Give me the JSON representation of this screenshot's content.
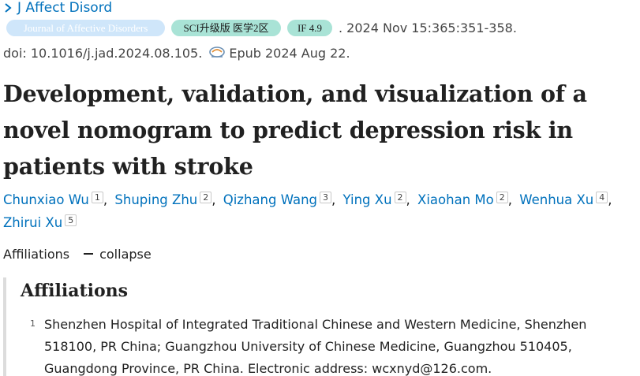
{
  "journal": {
    "name": "J Affect Disord"
  },
  "badges": {
    "journal_full": "Journal of Affective Disorders",
    "sci": "SCI升级版 医学2区",
    "impact": "IF 4.9"
  },
  "citation": {
    "details": ". 2024 Nov 15:365:351-358.",
    "doi": "doi: 10.1016/j.jad.2024.08.105.",
    "epub": "Epub 2024 Aug 22."
  },
  "article": {
    "title": "Development, validation, and visualization of a novel nomogram to predict depression risk in patients with stroke"
  },
  "authors": [
    {
      "name": "Chunxiao Wu",
      "aff": "1"
    },
    {
      "name": "Shuping Zhu",
      "aff": "2"
    },
    {
      "name": "Qizhang Wang",
      "aff": "3"
    },
    {
      "name": "Ying Xu",
      "aff": "2"
    },
    {
      "name": "Xiaohan Mo",
      "aff": "2"
    },
    {
      "name": "Wenhua Xu",
      "aff": "4"
    },
    {
      "name": "Zhirui Xu",
      "aff": "5"
    }
  ],
  "affiliations_toggle": {
    "label": "Affiliations",
    "action": "collapse"
  },
  "affiliations_panel": {
    "heading": "Affiliations",
    "items": [
      {
        "num": "1",
        "text": "Shenzhen Hospital of Integrated Traditional Chinese and Western Medicine, Shenzhen 518100, PR China; Guangzhou University of Chinese Medicine, Guangzhou 510405, Guangdong Province, PR China. Electronic address: wcxnyd@126.com."
      }
    ]
  },
  "colors": {
    "link": "#0071bc",
    "badge_journal": "#cfe6fa",
    "badge_green": "#a9e3d6"
  },
  "icons": {
    "journal_chevron": "chevron-right-icon",
    "epub": "epub-icon"
  }
}
